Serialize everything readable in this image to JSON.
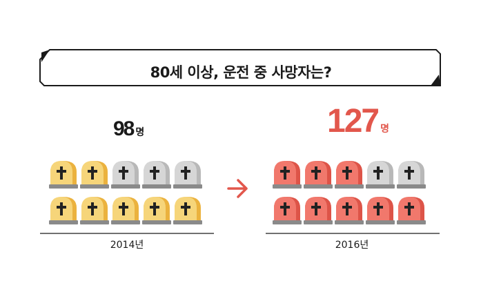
{
  "title": "80세 이상, 운전 중 사망자는?",
  "left": {
    "count": "98",
    "unit": "명",
    "year": "2014년",
    "filled": 7,
    "total": 10
  },
  "right": {
    "count": "127",
    "unit": "명",
    "year": "2016년",
    "filled": 8,
    "total": 10
  },
  "colors": {
    "left_fill": "#f6d57a",
    "left_fill_shadow": "#ebb23e",
    "right_fill": "#f1786c",
    "right_fill_shadow": "#dd5448",
    "empty_fill": "#d6d6d6",
    "empty_fill_shadow": "#b8b8b8",
    "base": "#8a8a8a",
    "cross": "#222222",
    "arrow": "#e2574c"
  },
  "icons": {
    "tombstone": "tombstone-icon",
    "arrow": "arrow-right-icon"
  }
}
